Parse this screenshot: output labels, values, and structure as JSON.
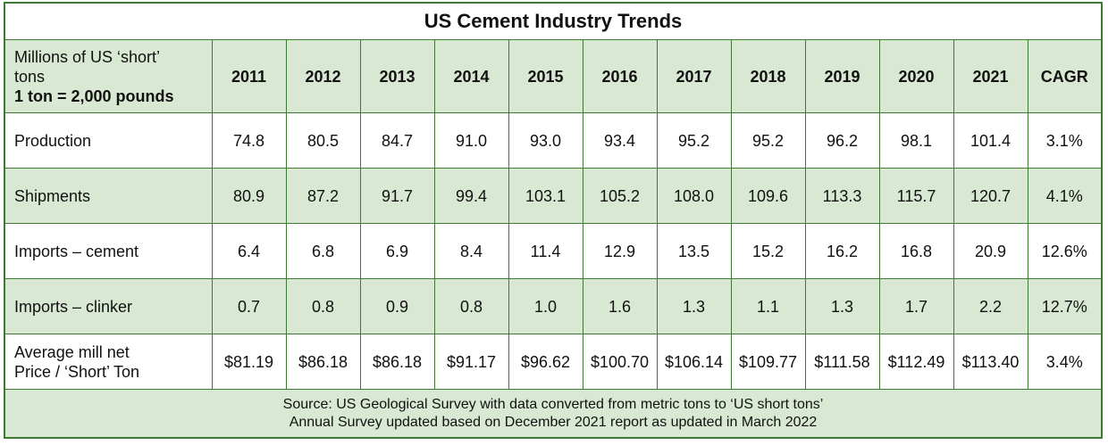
{
  "header": {
    "title": "US Cement Industry Trends"
  },
  "table": {
    "corner": [
      "Millions of US ‘short’",
      "tons",
      "1 ton = 2,000 pounds"
    ],
    "columns": [
      "2011",
      "2012",
      "2013",
      "2014",
      "2015",
      "2016",
      "2017",
      "2018",
      "2019",
      "2020",
      "2021",
      "CAGR"
    ],
    "rows": [
      {
        "label": [
          "Production"
        ],
        "cells": [
          "74.8",
          "80.5",
          "84.7",
          "91.0",
          "93.0",
          "93.4",
          "95.2",
          "95.2",
          "96.2",
          "98.1",
          "101.4",
          "3.1%"
        ]
      },
      {
        "label": [
          "Shipments"
        ],
        "cells": [
          "80.9",
          "87.2",
          "91.7",
          "99.4",
          "103.1",
          "105.2",
          "108.0",
          "109.6",
          "113.3",
          "115.7",
          "120.7",
          "4.1%"
        ]
      },
      {
        "label": [
          "Imports – cement"
        ],
        "cells": [
          "6.4",
          "6.8",
          "6.9",
          "8.4",
          "11.4",
          "12.9",
          "13.5",
          "15.2",
          "16.2",
          "16.8",
          "20.9",
          "12.6%"
        ]
      },
      {
        "label": [
          "Imports – clinker"
        ],
        "cells": [
          "0.7",
          "0.8",
          "0.9",
          "0.8",
          "1.0",
          "1.6",
          "1.3",
          "1.1",
          "1.3",
          "1.7",
          "2.2",
          "12.7%"
        ]
      },
      {
        "label": [
          "Average mill net",
          "Price / ‘Short’ Ton"
        ],
        "cells": [
          "$81.19",
          "$86.18",
          "$86.18",
          "$91.17",
          "$96.62",
          "$100.70",
          "$106.14",
          "$109.77",
          "$111.58",
          "$112.49",
          "$113.40",
          "3.4%"
        ]
      }
    ]
  },
  "footer": {
    "lines": [
      "Source: US Geological Survey with data converted from metric tons to ‘US short tons’",
      "Annual Survey updated based on December 2021 report as updated in March 2022"
    ]
  }
}
